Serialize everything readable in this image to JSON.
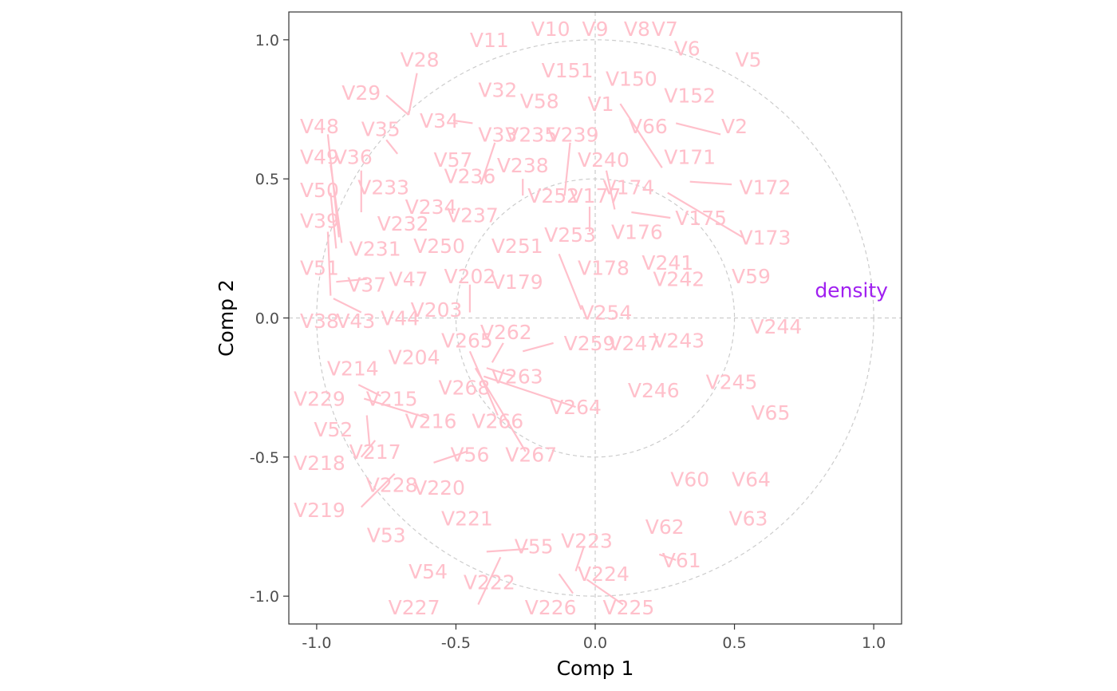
{
  "chart_data": {
    "type": "scatter",
    "title": "",
    "xlabel": "Comp 1",
    "ylabel": "Comp 2",
    "xlim": [
      -1.1,
      1.1
    ],
    "ylim": [
      -1.1,
      1.1
    ],
    "xticks": [
      "-1.0",
      "-0.5",
      "0.0",
      "0.5",
      "1.0"
    ],
    "yticks": [
      "-1.0",
      "-0.5",
      "0.0",
      "0.5",
      "1.0"
    ],
    "xtick_values": [
      -1.0,
      -0.5,
      0.0,
      0.5,
      1.0
    ],
    "ytick_values": [
      -1.0,
      -0.5,
      0.0,
      0.5,
      1.0
    ],
    "circles": [
      1.0,
      0.5
    ],
    "reference_lines": {
      "x": 0,
      "y": 0
    },
    "grid": false,
    "colors": {
      "variables": "#FFC0CB",
      "target": "#A020F0",
      "guides": "#cccccc",
      "frame": "#333333"
    },
    "target": {
      "label": "density",
      "x": 0.92,
      "y": 0.1
    },
    "labels": [
      {
        "label": "V11",
        "x": -0.38,
        "y": 1.0
      },
      {
        "label": "V10",
        "x": -0.16,
        "y": 1.04
      },
      {
        "label": "V9",
        "x": 0.0,
        "y": 1.04
      },
      {
        "label": "V8",
        "x": 0.15,
        "y": 1.04
      },
      {
        "label": "V7",
        "x": 0.25,
        "y": 1.04
      },
      {
        "label": "V6",
        "x": 0.33,
        "y": 0.97
      },
      {
        "label": "V5",
        "x": 0.55,
        "y": 0.93
      },
      {
        "label": "V28",
        "x": -0.63,
        "y": 0.93
      },
      {
        "label": "V151",
        "x": -0.1,
        "y": 0.89
      },
      {
        "label": "V150",
        "x": 0.13,
        "y": 0.86
      },
      {
        "label": "V29",
        "x": -0.84,
        "y": 0.81
      },
      {
        "label": "V32",
        "x": -0.35,
        "y": 0.82
      },
      {
        "label": "V58",
        "x": -0.2,
        "y": 0.78
      },
      {
        "label": "V152",
        "x": 0.34,
        "y": 0.8
      },
      {
        "label": "V1",
        "x": 0.02,
        "y": 0.77
      },
      {
        "label": "V34",
        "x": -0.56,
        "y": 0.71
      },
      {
        "label": "V48",
        "x": -0.99,
        "y": 0.69
      },
      {
        "label": "V35",
        "x": -0.77,
        "y": 0.68
      },
      {
        "label": "V33",
        "x": -0.35,
        "y": 0.66
      },
      {
        "label": "V235",
        "x": -0.23,
        "y": 0.66
      },
      {
        "label": "V239",
        "x": -0.08,
        "y": 0.66
      },
      {
        "label": "V66",
        "x": 0.19,
        "y": 0.69
      },
      {
        "label": "V2",
        "x": 0.5,
        "y": 0.69
      },
      {
        "label": "V49",
        "x": -0.99,
        "y": 0.58
      },
      {
        "label": "V36",
        "x": -0.87,
        "y": 0.58
      },
      {
        "label": "V57",
        "x": -0.51,
        "y": 0.57
      },
      {
        "label": "V240",
        "x": 0.03,
        "y": 0.57
      },
      {
        "label": "V171",
        "x": 0.34,
        "y": 0.58
      },
      {
        "label": "V236",
        "x": -0.45,
        "y": 0.51
      },
      {
        "label": "V238",
        "x": -0.26,
        "y": 0.55
      },
      {
        "label": "V50",
        "x": -0.99,
        "y": 0.46
      },
      {
        "label": "V233",
        "x": -0.76,
        "y": 0.47
      },
      {
        "label": "V174",
        "x": 0.12,
        "y": 0.47
      },
      {
        "label": "V172",
        "x": 0.61,
        "y": 0.47
      },
      {
        "label": "V252",
        "x": -0.15,
        "y": 0.44
      },
      {
        "label": "V177",
        "x": 0.0,
        "y": 0.44
      },
      {
        "label": "V234",
        "x": -0.59,
        "y": 0.4
      },
      {
        "label": "V237",
        "x": -0.44,
        "y": 0.37
      },
      {
        "label": "V232",
        "x": -0.69,
        "y": 0.34
      },
      {
        "label": "V39",
        "x": -0.99,
        "y": 0.35
      },
      {
        "label": "V175",
        "x": 0.38,
        "y": 0.36
      },
      {
        "label": "V253",
        "x": -0.09,
        "y": 0.3
      },
      {
        "label": "V176",
        "x": 0.15,
        "y": 0.31
      },
      {
        "label": "V173",
        "x": 0.61,
        "y": 0.29
      },
      {
        "label": "V231",
        "x": -0.79,
        "y": 0.25
      },
      {
        "label": "V250",
        "x": -0.56,
        "y": 0.26
      },
      {
        "label": "V251",
        "x": -0.28,
        "y": 0.26
      },
      {
        "label": "V51",
        "x": -0.99,
        "y": 0.18
      },
      {
        "label": "V178",
        "x": 0.03,
        "y": 0.18
      },
      {
        "label": "V241",
        "x": 0.26,
        "y": 0.2
      },
      {
        "label": "V202",
        "x": -0.45,
        "y": 0.15
      },
      {
        "label": "V37",
        "x": -0.82,
        "y": 0.12
      },
      {
        "label": "V47",
        "x": -0.67,
        "y": 0.14
      },
      {
        "label": "V179",
        "x": -0.28,
        "y": 0.13
      },
      {
        "label": "V242",
        "x": 0.3,
        "y": 0.14
      },
      {
        "label": "V59",
        "x": 0.56,
        "y": 0.15
      },
      {
        "label": "V203",
        "x": -0.57,
        "y": 0.03
      },
      {
        "label": "V254",
        "x": 0.04,
        "y": 0.02
      },
      {
        "label": "V38",
        "x": -0.99,
        "y": -0.01
      },
      {
        "label": "V43",
        "x": -0.86,
        "y": -0.01
      },
      {
        "label": "V44",
        "x": -0.7,
        "y": 0.0
      },
      {
        "label": "V244",
        "x": 0.65,
        "y": -0.03
      },
      {
        "label": "V262",
        "x": -0.32,
        "y": -0.05
      },
      {
        "label": "V265",
        "x": -0.46,
        "y": -0.08
      },
      {
        "label": "V259",
        "x": -0.02,
        "y": -0.09
      },
      {
        "label": "V247",
        "x": 0.14,
        "y": -0.09
      },
      {
        "label": "V243",
        "x": 0.3,
        "y": -0.08
      },
      {
        "label": "V204",
        "x": -0.65,
        "y": -0.14
      },
      {
        "label": "V214",
        "x": -0.87,
        "y": -0.18
      },
      {
        "label": "V263",
        "x": -0.28,
        "y": -0.21
      },
      {
        "label": "V245",
        "x": 0.49,
        "y": -0.23
      },
      {
        "label": "V268",
        "x": -0.47,
        "y": -0.25
      },
      {
        "label": "V246",
        "x": 0.21,
        "y": -0.26
      },
      {
        "label": "V229",
        "x": -0.99,
        "y": -0.29
      },
      {
        "label": "V215",
        "x": -0.73,
        "y": -0.29
      },
      {
        "label": "V264",
        "x": -0.07,
        "y": -0.32
      },
      {
        "label": "V65",
        "x": 0.63,
        "y": -0.34
      },
      {
        "label": "V216",
        "x": -0.59,
        "y": -0.37
      },
      {
        "label": "V266",
        "x": -0.35,
        "y": -0.37
      },
      {
        "label": "V52",
        "x": -0.94,
        "y": -0.4
      },
      {
        "label": "V217",
        "x": -0.79,
        "y": -0.48
      },
      {
        "label": "V56",
        "x": -0.45,
        "y": -0.49
      },
      {
        "label": "V267",
        "x": -0.23,
        "y": -0.49
      },
      {
        "label": "V218",
        "x": -0.99,
        "y": -0.52
      },
      {
        "label": "V60",
        "x": 0.34,
        "y": -0.58
      },
      {
        "label": "V64",
        "x": 0.56,
        "y": -0.58
      },
      {
        "label": "V228",
        "x": -0.73,
        "y": -0.6
      },
      {
        "label": "V220",
        "x": -0.56,
        "y": -0.61
      },
      {
        "label": "V219",
        "x": -0.99,
        "y": -0.69
      },
      {
        "label": "V221",
        "x": -0.46,
        "y": -0.72
      },
      {
        "label": "V63",
        "x": 0.55,
        "y": -0.72
      },
      {
        "label": "V62",
        "x": 0.25,
        "y": -0.75
      },
      {
        "label": "V53",
        "x": -0.75,
        "y": -0.78
      },
      {
        "label": "V55",
        "x": -0.22,
        "y": -0.82
      },
      {
        "label": "V223",
        "x": -0.03,
        "y": -0.8
      },
      {
        "label": "V61",
        "x": 0.31,
        "y": -0.87
      },
      {
        "label": "V54",
        "x": -0.6,
        "y": -0.91
      },
      {
        "label": "V222",
        "x": -0.38,
        "y": -0.95
      },
      {
        "label": "V224",
        "x": 0.03,
        "y": -0.92
      },
      {
        "label": "V227",
        "x": -0.65,
        "y": -1.04
      },
      {
        "label": "V226",
        "x": -0.16,
        "y": -1.04
      },
      {
        "label": "V225",
        "x": 0.12,
        "y": -1.04
      }
    ],
    "segments": [
      {
        "x1": -0.64,
        "y1": 0.88,
        "x2": -0.67,
        "y2": 0.73
      },
      {
        "x1": -0.75,
        "y1": 0.8,
        "x2": -0.67,
        "y2": 0.73
      },
      {
        "x1": -0.51,
        "y1": 0.71,
        "x2": -0.44,
        "y2": 0.7
      },
      {
        "x1": -0.75,
        "y1": 0.64,
        "x2": -0.71,
        "y2": 0.59
      },
      {
        "x1": -0.96,
        "y1": 0.66,
        "x2": -0.92,
        "y2": 0.29
      },
      {
        "x1": -0.95,
        "y1": 0.55,
        "x2": -0.91,
        "y2": 0.27
      },
      {
        "x1": -0.95,
        "y1": 0.45,
        "x2": -0.93,
        "y2": 0.25
      },
      {
        "x1": -0.96,
        "y1": 0.31,
        "x2": -0.95,
        "y2": 0.08
      },
      {
        "x1": -0.84,
        "y1": 0.53,
        "x2": -0.84,
        "y2": 0.38
      },
      {
        "x1": -0.36,
        "y1": 0.63,
        "x2": -0.41,
        "y2": 0.48
      },
      {
        "x1": -0.26,
        "y1": 0.5,
        "x2": -0.26,
        "y2": 0.44
      },
      {
        "x1": -0.09,
        "y1": 0.63,
        "x2": -0.11,
        "y2": 0.44
      },
      {
        "x1": 0.04,
        "y1": 0.53,
        "x2": 0.07,
        "y2": 0.39
      },
      {
        "x1": -0.02,
        "y1": 0.4,
        "x2": -0.02,
        "y2": 0.31
      },
      {
        "x1": 0.09,
        "y1": 0.77,
        "x2": 0.24,
        "y2": 0.54
      },
      {
        "x1": 0.29,
        "y1": 0.7,
        "x2": 0.45,
        "y2": 0.66
      },
      {
        "x1": 0.34,
        "y1": 0.49,
        "x2": 0.49,
        "y2": 0.48
      },
      {
        "x1": 0.13,
        "y1": 0.38,
        "x2": 0.27,
        "y2": 0.36
      },
      {
        "x1": 0.26,
        "y1": 0.45,
        "x2": 0.53,
        "y2": 0.29
      },
      {
        "x1": -0.13,
        "y1": 0.23,
        "x2": -0.05,
        "y2": 0.03
      },
      {
        "x1": -0.45,
        "y1": 0.12,
        "x2": -0.45,
        "y2": 0.02
      },
      {
        "x1": -0.93,
        "y1": 0.13,
        "x2": -0.82,
        "y2": 0.14
      },
      {
        "x1": -0.94,
        "y1": 0.07,
        "x2": -0.84,
        "y2": 0.02
      },
      {
        "x1": -0.26,
        "y1": -0.12,
        "x2": -0.15,
        "y2": -0.09
      },
      {
        "x1": -0.33,
        "y1": -0.09,
        "x2": -0.37,
        "y2": -0.16
      },
      {
        "x1": -0.45,
        "y1": -0.12,
        "x2": -0.35,
        "y2": -0.35
      },
      {
        "x1": -0.43,
        "y1": -0.18,
        "x2": -0.25,
        "y2": -0.48
      },
      {
        "x1": -0.39,
        "y1": -0.18,
        "x2": -0.29,
        "y2": -0.21
      },
      {
        "x1": -0.4,
        "y1": -0.21,
        "x2": -0.07,
        "y2": -0.32
      },
      {
        "x1": -0.85,
        "y1": -0.24,
        "x2": -0.77,
        "y2": -0.28
      },
      {
        "x1": -0.83,
        "y1": -0.29,
        "x2": -0.6,
        "y2": -0.36
      },
      {
        "x1": -0.82,
        "y1": -0.35,
        "x2": -0.81,
        "y2": -0.46
      },
      {
        "x1": -0.84,
        "y1": -0.5,
        "x2": -0.79,
        "y2": -0.44
      },
      {
        "x1": -0.58,
        "y1": -0.52,
        "x2": -0.46,
        "y2": -0.48
      },
      {
        "x1": -0.84,
        "y1": -0.68,
        "x2": -0.72,
        "y2": -0.56
      },
      {
        "x1": -0.39,
        "y1": -0.84,
        "x2": -0.24,
        "y2": -0.83
      },
      {
        "x1": -0.42,
        "y1": -1.03,
        "x2": -0.34,
        "y2": -0.86
      },
      {
        "x1": -0.13,
        "y1": -0.92,
        "x2": -0.08,
        "y2": -0.99
      },
      {
        "x1": -0.07,
        "y1": -0.91,
        "x2": -0.04,
        "y2": -0.82
      },
      {
        "x1": -0.03,
        "y1": -0.94,
        "x2": 0.1,
        "y2": -1.03
      },
      {
        "x1": 0.23,
        "y1": -0.85,
        "x2": 0.29,
        "y2": -0.87
      }
    ]
  }
}
